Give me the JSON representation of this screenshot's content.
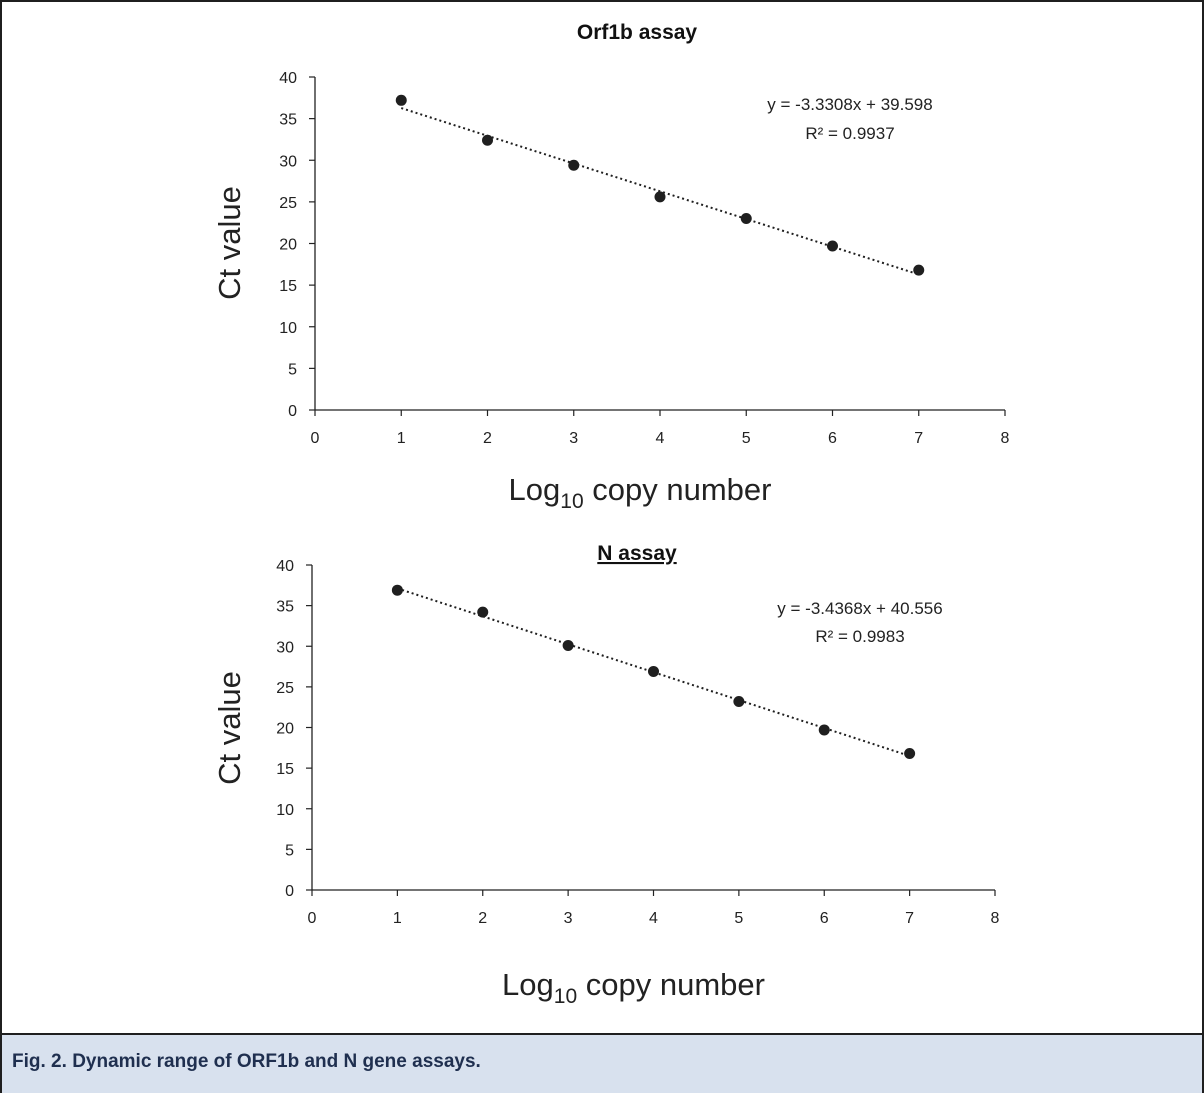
{
  "caption": {
    "label": "Fig. 2.",
    "text": "Dynamic range of ORF1b and N gene assays."
  },
  "colors": {
    "marker": "#1f1f1f",
    "axis": "#222222",
    "trendline": "#1f1f1f",
    "caption_bg": "#d8e1ee",
    "caption_text": "#1f2f4f"
  },
  "chart_data": [
    {
      "type": "scatter",
      "title": "Orf1b assay",
      "title_underlined": false,
      "xlabel_main": "Log",
      "xlabel_sub": "10",
      "xlabel_rest": " copy number",
      "ylabel": "Ct value",
      "xlim": [
        0,
        8
      ],
      "ylim": [
        0,
        40
      ],
      "xticks": [
        0,
        1,
        2,
        3,
        4,
        5,
        6,
        7,
        8
      ],
      "yticks": [
        0,
        5,
        10,
        15,
        20,
        25,
        30,
        35,
        40
      ],
      "x": [
        1,
        2,
        3,
        4,
        5,
        6,
        7
      ],
      "y": [
        37.2,
        32.4,
        29.4,
        25.6,
        23.0,
        19.7,
        16.8
      ],
      "trendline": {
        "slope": -3.3308,
        "intercept": 39.598,
        "style": "dotted",
        "x_range": [
          1,
          7
        ]
      },
      "equation": "y = -3.3308x + 39.598",
      "r2": "R² = 0.9937",
      "grid": false
    },
    {
      "type": "scatter",
      "title": "N assay",
      "title_underlined": true,
      "xlabel_main": "Log",
      "xlabel_sub": "10",
      "xlabel_rest": " copy number",
      "ylabel": "Ct value",
      "xlim": [
        0,
        8
      ],
      "ylim": [
        0,
        40
      ],
      "xticks": [
        0,
        1,
        2,
        3,
        4,
        5,
        6,
        7,
        8
      ],
      "yticks": [
        0,
        5,
        10,
        15,
        20,
        25,
        30,
        35,
        40
      ],
      "x": [
        1,
        2,
        3,
        4,
        5,
        6,
        7
      ],
      "y": [
        36.9,
        34.2,
        30.1,
        26.9,
        23.2,
        19.7,
        16.8
      ],
      "trendline": {
        "slope": -3.4368,
        "intercept": 40.556,
        "style": "dotted",
        "x_range": [
          1,
          7
        ]
      },
      "equation": "y = -3.4368x + 40.556",
      "r2": "R² = 0.9983",
      "grid": false
    }
  ]
}
